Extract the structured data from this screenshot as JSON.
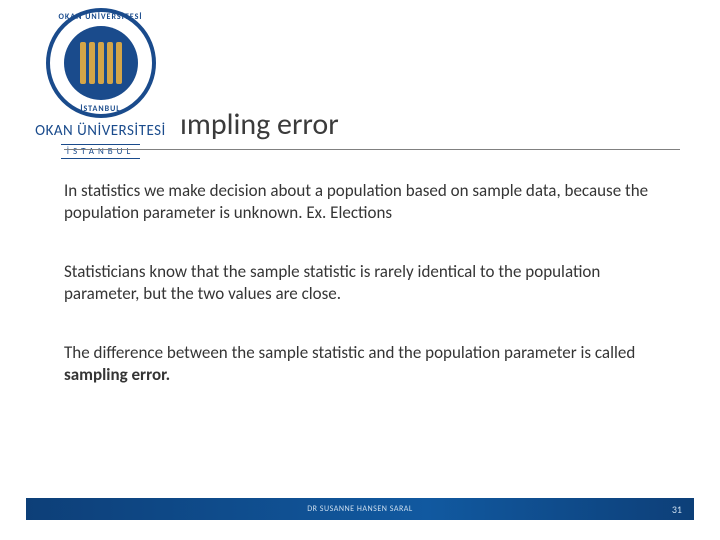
{
  "logo": {
    "university_main": "OKAN ÜNİVERSİTESİ",
    "university_sub": "İSTANBUL",
    "seal_top": "OKAN ÜNİVERSİTESİ",
    "seal_bottom": "İSTANBUL"
  },
  "title": "ımpling error",
  "paragraphs": {
    "p1": "In statistics we make decision about a population based on sample data, because the population parameter is unknown. Ex. Elections",
    "p2": "Statisticians know that the sample statistic is rarely identical to the population parameter, but the two values are close.",
    "p3a": "The difference between the sample statistic and the population parameter is called ",
    "p3b": "sampling error."
  },
  "footer": {
    "author": "DR SUSANNE HANSEN SARAL",
    "page": "31"
  },
  "colors": {
    "brand_blue": "#1a4b8c",
    "footer_blue": "#0e4d8f",
    "gold": "#d4a548",
    "text": "#353535",
    "rule": "#808080"
  },
  "typography": {
    "title_fontsize": 30,
    "body_fontsize": 17,
    "footer_fontsize": 8
  }
}
